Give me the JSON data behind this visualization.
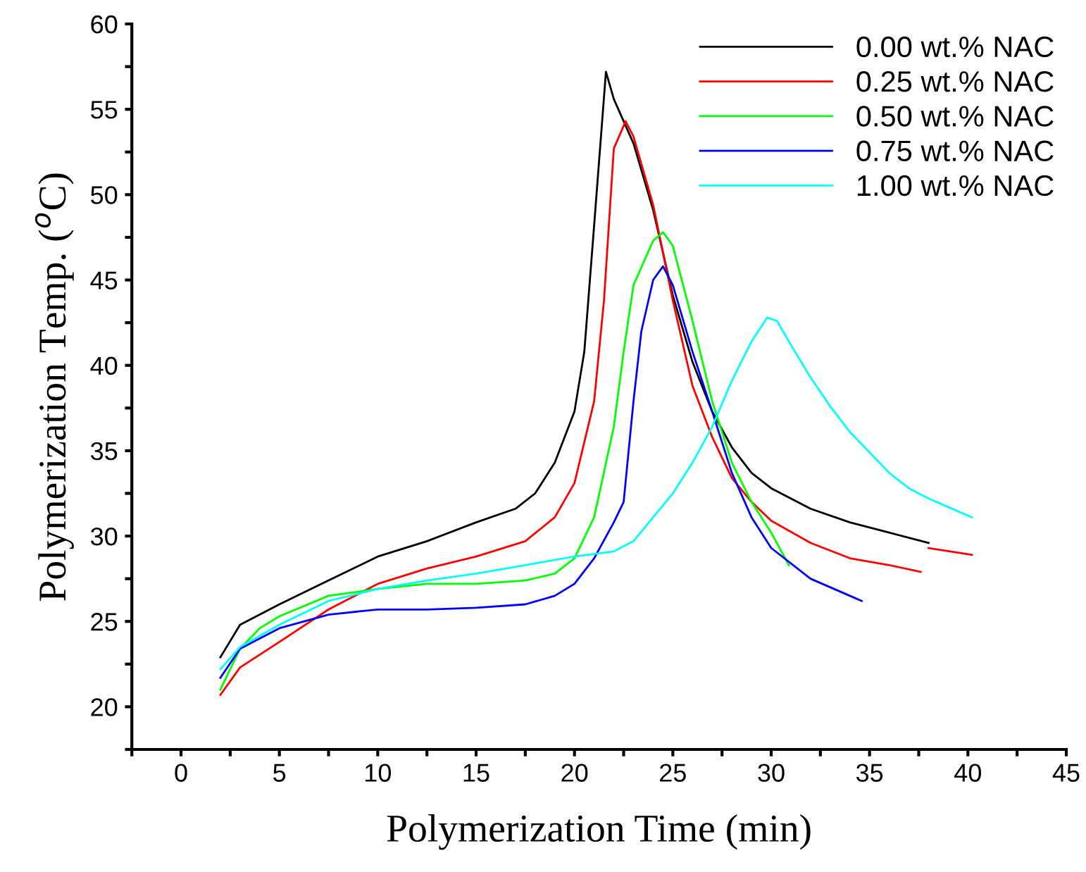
{
  "chart_data": {
    "type": "line",
    "xlabel": "Polymerization Time (min)",
    "ylabel": "Polymerization Temp. ($^{o}$C)",
    "xlim": [
      -2.5,
      45
    ],
    "ylim": [
      17.5,
      60
    ],
    "xticks": [
      {
        "value": -2.5,
        "label": null
      },
      0,
      {
        "value": 2.5,
        "label": null
      },
      5,
      {
        "value": 7.5,
        "label": null
      },
      10,
      {
        "value": 12.5,
        "label": null
      },
      15,
      {
        "value": 17.5,
        "label": null
      },
      20,
      {
        "value": 22.5,
        "label": null
      },
      25,
      {
        "value": 27.5,
        "label": null
      },
      30,
      {
        "value": 32.5,
        "label": null
      },
      35,
      {
        "value": 37.5,
        "label": null
      },
      40,
      {
        "value": 42.5,
        "label": null
      },
      45
    ],
    "yticks": [
      {
        "value": 17.5,
        "label": null
      },
      20,
      {
        "value": 22.5,
        "label": null
      },
      25,
      {
        "value": 27.5,
        "label": null
      },
      30,
      {
        "value": 32.5,
        "label": null
      },
      35,
      {
        "value": 37.5,
        "label": null
      },
      40,
      {
        "value": 42.5,
        "label": null
      },
      45,
      {
        "value": 47.5,
        "label": null
      },
      50,
      {
        "value": 52.5,
        "label": null
      },
      55,
      {
        "value": 57.5,
        "label": null
      },
      60
    ],
    "grid": false,
    "legend": "top right",
    "marker": "none",
    "line_style": "solid",
    "series": [
      {
        "name": "0.00 wt.% NAC",
        "color": "#000000",
        "x": [
          2,
          3,
          5,
          7.5,
          10,
          12.5,
          15,
          17,
          18,
          19,
          20,
          20.5,
          21,
          21.6,
          22,
          23,
          24,
          25,
          26,
          27,
          28,
          29,
          30,
          32,
          34,
          36,
          38
        ],
        "values": [
          22.9,
          24.8,
          26.0,
          27.4,
          28.8,
          29.7,
          30.8,
          31.6,
          32.5,
          34.3,
          37.3,
          40.8,
          48.2,
          57.2,
          55.6,
          53.0,
          49.1,
          44.1,
          40.2,
          37.3,
          35.2,
          33.7,
          32.8,
          31.6,
          30.8,
          30.2,
          29.6
        ]
      },
      {
        "name": "0.25 wt.% NAC",
        "color": "#ff0000",
        "x": [
          2,
          3,
          5,
          7.5,
          10,
          12.5,
          15,
          17.5,
          19,
          20,
          21,
          21.5,
          22,
          22.6,
          23,
          24,
          25,
          26,
          27,
          28,
          29,
          30,
          32,
          34,
          36,
          37.6,
          37.8,
          38,
          40.2
        ],
        "values": [
          20.7,
          22.3,
          23.8,
          25.7,
          27.2,
          28.1,
          28.8,
          29.7,
          31.1,
          33.1,
          37.9,
          43.8,
          52.7,
          54.3,
          53.4,
          49.4,
          43.8,
          38.8,
          35.8,
          33.4,
          32.0,
          30.9,
          29.6,
          28.7,
          28.3,
          27.9,
          null,
          29.3,
          28.9
        ]
      },
      {
        "name": "0.50 wt.% NAC",
        "color": "#00ff00",
        "x": [
          2,
          3,
          4,
          5,
          7.5,
          10,
          12.5,
          15,
          17.5,
          19,
          20,
          21,
          22,
          22.5,
          23,
          24,
          24.5,
          25,
          26,
          27,
          28,
          29,
          30,
          30.9
        ],
        "values": [
          21.0,
          23.4,
          24.6,
          25.3,
          26.5,
          26.9,
          27.2,
          27.2,
          27.4,
          27.8,
          28.7,
          31.1,
          36.4,
          40.8,
          44.7,
          47.3,
          47.8,
          47.0,
          42.6,
          37.9,
          34.3,
          32.0,
          30.2,
          28.3
        ]
      },
      {
        "name": "0.75 wt.% NAC",
        "color": "#0000ff",
        "x": [
          2,
          3,
          5,
          7.5,
          10,
          12.5,
          15,
          17.5,
          19,
          20,
          21,
          22,
          22.5,
          23,
          23.4,
          24,
          24.5,
          25,
          26,
          27,
          28,
          29,
          30,
          32,
          34,
          34.6
        ],
        "values": [
          21.7,
          23.4,
          24.6,
          25.4,
          25.7,
          25.7,
          25.8,
          26.0,
          26.5,
          27.2,
          28.7,
          30.8,
          32.0,
          37.9,
          42.0,
          45.0,
          45.8,
          44.7,
          40.8,
          37.3,
          33.7,
          31.1,
          29.3,
          27.5,
          26.5,
          26.2
        ]
      },
      {
        "name": "1.00 wt.% NAC",
        "color": "#00ffff",
        "x": [
          2,
          3,
          5,
          7.5,
          10,
          12.5,
          15,
          17.5,
          20,
          22,
          23,
          24,
          25,
          26,
          27,
          28,
          29,
          29.8,
          30.3,
          31,
          32,
          33,
          34,
          35,
          36,
          37,
          38,
          39,
          40.2
        ],
        "values": [
          22.2,
          23.5,
          24.8,
          26.2,
          26.9,
          27.4,
          27.8,
          28.3,
          28.8,
          29.1,
          29.7,
          31.1,
          32.5,
          34.3,
          36.4,
          39.1,
          41.4,
          42.8,
          42.6,
          41.2,
          39.3,
          37.6,
          36.1,
          34.9,
          33.7,
          32.8,
          32.2,
          31.7,
          31.1
        ]
      }
    ]
  }
}
